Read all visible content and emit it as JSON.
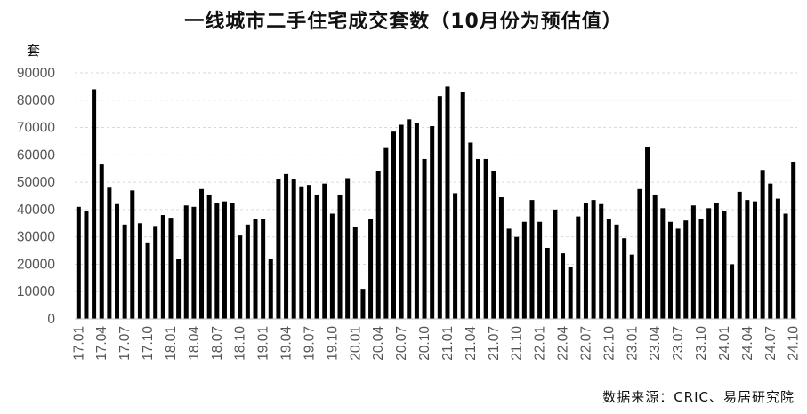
{
  "chart_data": {
    "type": "bar",
    "title": "一线城市二手住宅成交套数（10月份为预估值）",
    "ylabel": "套",
    "ylim": [
      0,
      90000
    ],
    "yticks": [
      0,
      10000,
      20000,
      30000,
      40000,
      50000,
      60000,
      70000,
      80000,
      90000
    ],
    "grid": true,
    "bar_color": "#000000",
    "grid_color": "#d9d9d9",
    "categories": [
      "17.01",
      "17.02",
      "17.03",
      "17.04",
      "17.05",
      "17.06",
      "17.07",
      "17.08",
      "17.09",
      "17.10",
      "17.11",
      "17.12",
      "18.01",
      "18.02",
      "18.03",
      "18.04",
      "18.05",
      "18.06",
      "18.07",
      "18.08",
      "18.09",
      "18.10",
      "18.11",
      "18.12",
      "19.01",
      "19.02",
      "19.03",
      "19.04",
      "19.05",
      "19.06",
      "19.07",
      "19.08",
      "19.09",
      "19.10",
      "19.11",
      "19.12",
      "20.01",
      "20.02",
      "20.03",
      "20.04",
      "20.05",
      "20.06",
      "20.07",
      "20.08",
      "20.09",
      "20.10",
      "20.11",
      "20.12",
      "21.01",
      "21.02",
      "21.03",
      "21.04",
      "21.05",
      "21.06",
      "21.07",
      "21.08",
      "21.09",
      "21.10",
      "21.11",
      "21.12",
      "22.01",
      "22.02",
      "22.03",
      "22.04",
      "22.05",
      "22.06",
      "22.07",
      "22.08",
      "22.09",
      "22.10",
      "22.11",
      "22.12",
      "23.01",
      "23.02",
      "23.03",
      "23.04",
      "23.05",
      "23.06",
      "23.07",
      "23.08",
      "23.09",
      "23.10",
      "23.11",
      "23.12",
      "24.01",
      "24.02",
      "24.03",
      "24.04",
      "24.05",
      "24.06",
      "24.07",
      "24.08",
      "24.09",
      "24.10"
    ],
    "visible_xtick_labels": [
      "17.01",
      "17.04",
      "17.07",
      "17.10",
      "18.01",
      "18.04",
      "18.07",
      "18.10",
      "19.01",
      "19.04",
      "19.07",
      "19.10",
      "20.01",
      "20.04",
      "20.07",
      "20.10",
      "21.01",
      "21.04",
      "21.07",
      "21.10",
      "22.01",
      "22.04",
      "22.07",
      "22.10",
      "23.01",
      "23.04",
      "23.07",
      "23.10",
      "24.01",
      "24.04",
      "24.07",
      "24.10"
    ],
    "values": [
      41000,
      39500,
      84000,
      56500,
      48000,
      42000,
      34500,
      47000,
      35000,
      28000,
      34000,
      38000,
      37000,
      22000,
      41500,
      41000,
      47500,
      45500,
      42500,
      43000,
      42500,
      30500,
      34500,
      36500,
      36500,
      22000,
      51000,
      53000,
      51000,
      48500,
      49000,
      45500,
      49500,
      38500,
      45500,
      51500,
      33500,
      11000,
      36500,
      54000,
      62500,
      68500,
      71000,
      73000,
      71500,
      58500,
      70500,
      81500,
      85000,
      46000,
      83000,
      64500,
      58500,
      58500,
      54000,
      44500,
      33000,
      30000,
      35500,
      43500,
      35500,
      26000,
      40000,
      24000,
      19000,
      37500,
      42500,
      43500,
      42000,
      36500,
      34500,
      29500,
      23500,
      47500,
      63000,
      45500,
      40500,
      35500,
      33000,
      36000,
      41500,
      36500,
      40500,
      42500,
      39500,
      20000,
      46500,
      43500,
      43000,
      54500,
      49500,
      44000,
      38500,
      57500
    ]
  },
  "source_note": "数据来源：CRIC、易居研究院"
}
